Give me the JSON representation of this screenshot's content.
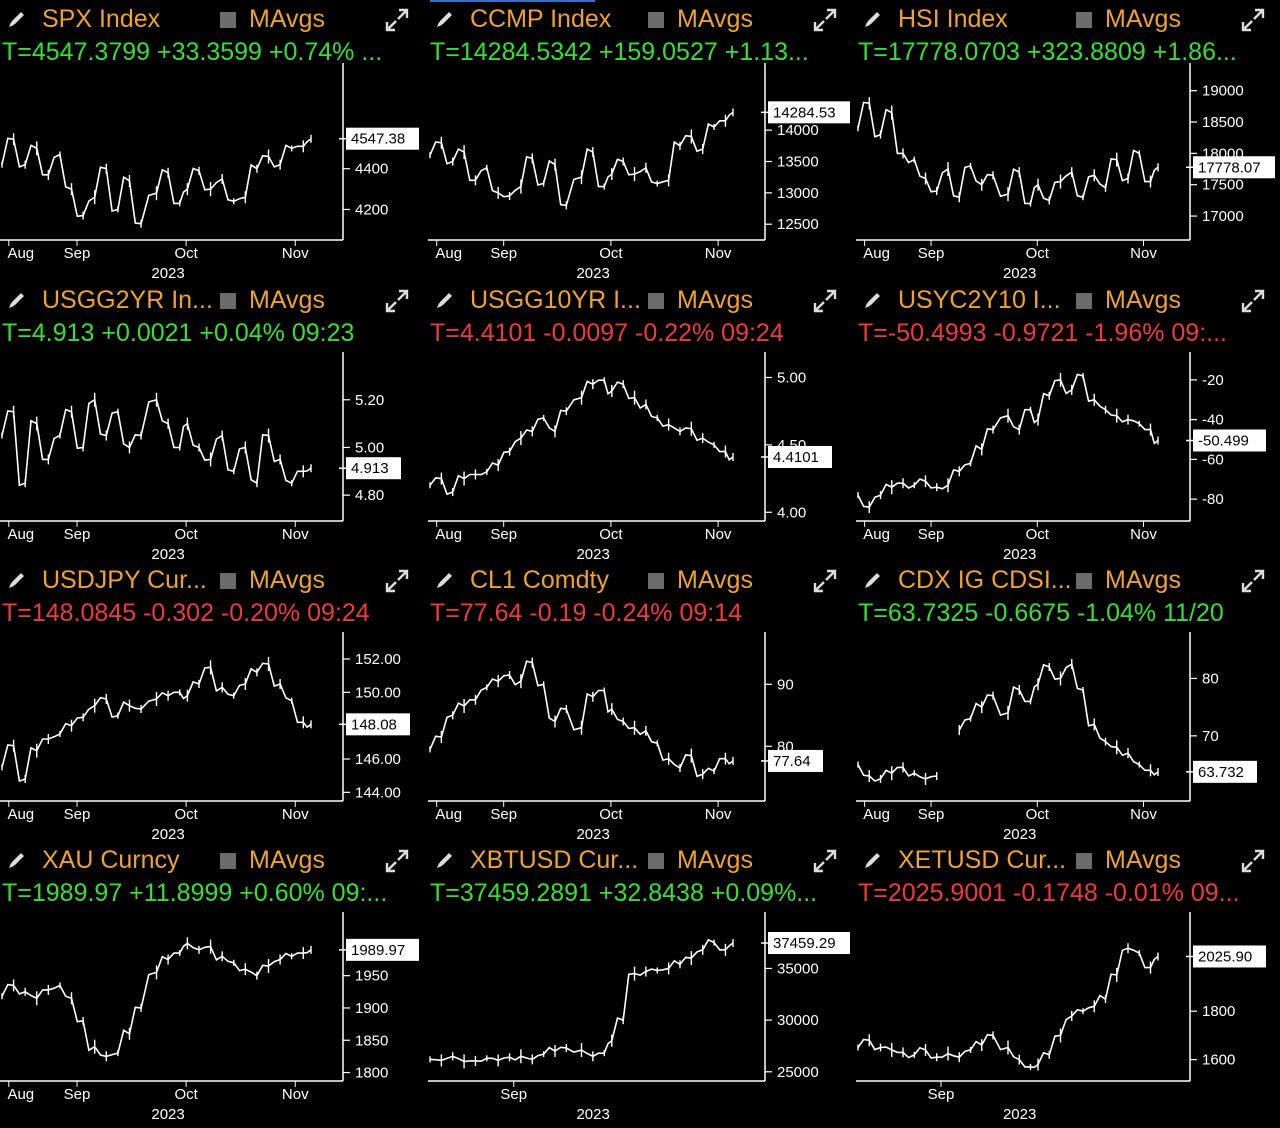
{
  "colors": {
    "background": "#000000",
    "title": "#f0a22e",
    "up": "#35e035",
    "down": "#f03a3a",
    "line": "#ffffff",
    "checkbox": "#6b6b6b"
  },
  "icons": {
    "edit": "pencil-icon",
    "expand": "expand-arrows-icon",
    "toggle": "checkbox-icon"
  },
  "panels": [
    {
      "title": "SPX Index",
      "mavgs": "MAvgs",
      "quote": "T=4547.3799 +33.3599 +0.74% ...",
      "direction": "up",
      "chart_data": {
        "type": "line",
        "ylim": [
          4060,
          4860
        ],
        "yticks": [
          {
            "v": 4400,
            "label": "4400"
          },
          {
            "v": 4200,
            "label": "4200"
          }
        ],
        "last": {
          "v": 4547.38,
          "label": "4547.38"
        },
        "months": [
          "Aug",
          "Sep",
          "Oct",
          "Nov"
        ],
        "year": "2023",
        "x": [
          0,
          3,
          6,
          9,
          12,
          15,
          18,
          21,
          24,
          27,
          30,
          33,
          36,
          40,
          43,
          46,
          48,
          51,
          54,
          57,
          60,
          63,
          66,
          69,
          72,
          75,
          78,
          80
        ],
        "values": [
          4420,
          4545,
          4420,
          4500,
          4370,
          4470,
          4300,
          4170,
          4260,
          4400,
          4200,
          4340,
          4130,
          4280,
          4380,
          4230,
          4300,
          4390,
          4300,
          4350,
          4240,
          4260,
          4400,
          4460,
          4420,
          4500,
          4510,
          4547
        ]
      }
    },
    {
      "title": "CCMP Index",
      "mavgs": "MAvgs",
      "quote": "T=14284.5342 +159.0527 +1.13...",
      "direction": "up",
      "chart_data": {
        "type": "line",
        "ylim": [
          12280,
          14880
        ],
        "yticks": [
          {
            "v": 14000,
            "label": "14000"
          },
          {
            "v": 13500,
            "label": "13500"
          },
          {
            "v": 13000,
            "label": "13000"
          },
          {
            "v": 12500,
            "label": "12500"
          }
        ],
        "last": {
          "v": 14284.53,
          "label": "14284.53"
        },
        "months": [
          "Aug",
          "Sep",
          "Oct",
          "Nov"
        ],
        "year": "2023",
        "x": [
          0,
          3,
          6,
          9,
          12,
          15,
          18,
          21,
          24,
          27,
          30,
          33,
          36,
          40,
          43,
          46,
          48,
          51,
          54,
          57,
          60,
          63,
          66,
          69,
          72,
          75,
          78,
          80
        ],
        "values": [
          13600,
          13800,
          13500,
          13650,
          13200,
          13400,
          13000,
          12950,
          13100,
          13550,
          13150,
          13450,
          12800,
          13250,
          13650,
          13100,
          13300,
          13500,
          13300,
          13400,
          13150,
          13200,
          13750,
          13900,
          13700,
          14050,
          14150,
          14284
        ]
      }
    },
    {
      "title": "HSI Index",
      "mavgs": "MAvgs",
      "quote": "T=17778.0703 +323.8809 +1.86...",
      "direction": "up",
      "chart_data": {
        "type": "line",
        "ylim": [
          16650,
          19250
        ],
        "yticks": [
          {
            "v": 19000,
            "label": "19000"
          },
          {
            "v": 18500,
            "label": "18500"
          },
          {
            "v": 18000,
            "label": "18000"
          },
          {
            "v": 17500,
            "label": "17500"
          },
          {
            "v": 17000,
            "label": "17000"
          }
        ],
        "last": {
          "v": 17778.07,
          "label": "17778.07"
        },
        "months": [
          "Aug",
          "Sep",
          "Oct",
          "Nov"
        ],
        "year": "2023",
        "x": [
          0,
          3,
          6,
          9,
          12,
          15,
          18,
          21,
          24,
          27,
          30,
          33,
          36,
          40,
          43,
          46,
          48,
          51,
          54,
          57,
          60,
          63,
          66,
          69,
          72,
          75,
          78,
          80
        ],
        "values": [
          18400,
          18800,
          18300,
          18650,
          18000,
          17900,
          17600,
          17400,
          17750,
          17300,
          17800,
          17500,
          17650,
          17350,
          17700,
          17200,
          17500,
          17250,
          17550,
          17700,
          17300,
          17650,
          17450,
          17900,
          17600,
          18000,
          17550,
          17778
        ]
      }
    },
    {
      "title": "USGG2YR In...",
      "mavgs": "MAvgs",
      "quote": "T=4.913 +0.0021 +0.04% 09:23",
      "direction": "up",
      "chart_data": {
        "type": "line",
        "ylim": [
          4.7,
          5.35
        ],
        "yticks": [
          {
            "v": 5.2,
            "label": "5.20"
          },
          {
            "v": 5.0,
            "label": "5.00"
          },
          {
            "v": 4.8,
            "label": "4.80"
          }
        ],
        "last": {
          "v": 4.913,
          "label": "4.913"
        },
        "months": [
          "Aug",
          "Sep",
          "Oct",
          "Nov"
        ],
        "year": "2023",
        "x": [
          0,
          3,
          6,
          9,
          12,
          15,
          18,
          21,
          24,
          27,
          30,
          33,
          36,
          40,
          43,
          46,
          48,
          51,
          54,
          57,
          60,
          63,
          66,
          69,
          72,
          75,
          78,
          80
        ],
        "values": [
          5.05,
          5.15,
          4.85,
          5.1,
          4.95,
          5.05,
          5.15,
          5.0,
          5.2,
          5.05,
          5.15,
          5.0,
          5.05,
          5.2,
          5.1,
          5.0,
          5.1,
          5.0,
          4.95,
          5.05,
          4.9,
          5.0,
          4.85,
          5.05,
          4.95,
          4.85,
          4.9,
          4.913
        ]
      }
    },
    {
      "title": "USGG10YR I...",
      "mavgs": "MAvgs",
      "quote": "T=4.4101 -0.0097 -0.22% 09:24",
      "direction": "down",
      "chart_data": {
        "type": "line",
        "ylim": [
          3.95,
          5.1
        ],
        "yticks": [
          {
            "v": 5.0,
            "label": "5.00"
          },
          {
            "v": 4.5,
            "label": "4.50"
          },
          {
            "v": 4.0,
            "label": "4.00"
          }
        ],
        "last": {
          "v": 4.4101,
          "label": "4.4101"
        },
        "months": [
          "Aug",
          "Sep",
          "Oct",
          "Nov"
        ],
        "year": "2023",
        "x": [
          0,
          3,
          6,
          9,
          12,
          15,
          18,
          21,
          24,
          27,
          30,
          33,
          36,
          40,
          43,
          46,
          48,
          51,
          54,
          57,
          60,
          63,
          66,
          69,
          72,
          75,
          78,
          80
        ],
        "values": [
          4.2,
          4.25,
          4.15,
          4.25,
          4.28,
          4.3,
          4.35,
          4.45,
          4.55,
          4.6,
          4.7,
          4.6,
          4.75,
          4.85,
          4.95,
          4.98,
          4.9,
          4.95,
          4.85,
          4.8,
          4.7,
          4.65,
          4.6,
          4.62,
          4.55,
          4.5,
          4.45,
          4.41
        ]
      }
    },
    {
      "title": "USYC2Y10 I...",
      "mavgs": "MAvgs",
      "quote": "T=-50.4993 -0.9721 -1.96% 09:...",
      "direction": "down",
      "chart_data": {
        "type": "line",
        "ylim": [
          -90,
          -12
        ],
        "yticks": [
          {
            "v": -20,
            "label": "-20"
          },
          {
            "v": -40,
            "label": "-40"
          },
          {
            "v": -60,
            "label": "-60"
          },
          {
            "v": -80,
            "label": "-80"
          }
        ],
        "last": {
          "v": -50.499,
          "label": "-50.499"
        },
        "months": [
          "Aug",
          "Sep",
          "Oct",
          "Nov"
        ],
        "year": "2023",
        "x": [
          0,
          3,
          6,
          9,
          12,
          15,
          18,
          21,
          24,
          27,
          30,
          33,
          36,
          40,
          43,
          46,
          48,
          51,
          54,
          57,
          60,
          63,
          66,
          69,
          72,
          75,
          78,
          80
        ],
        "values": [
          -78,
          -84,
          -78,
          -74,
          -72,
          -73,
          -71,
          -74,
          -73,
          -66,
          -62,
          -55,
          -45,
          -38,
          -45,
          -35,
          -40,
          -28,
          -20,
          -25,
          -18,
          -30,
          -35,
          -38,
          -40,
          -42,
          -45,
          -50.5
        ]
      }
    },
    {
      "title": "USDJPY Cur...",
      "mavgs": "MAvgs",
      "quote": "T=148.0845 -0.302 -0.20% 09:24",
      "direction": "down",
      "chart_data": {
        "type": "line",
        "ylim": [
          143.6,
          152.9
        ],
        "yticks": [
          {
            "v": 152,
            "label": "152.00"
          },
          {
            "v": 150,
            "label": "150.00"
          },
          {
            "v": 146,
            "label": "146.00"
          },
          {
            "v": 144,
            "label": "144.00"
          }
        ],
        "last": {
          "v": 148.08,
          "label": "148.08"
        },
        "months": [
          "Aug",
          "Sep",
          "Oct",
          "Nov"
        ],
        "year": "2023",
        "x": [
          0,
          3,
          6,
          9,
          12,
          15,
          18,
          21,
          24,
          27,
          30,
          33,
          36,
          40,
          43,
          46,
          48,
          51,
          54,
          57,
          60,
          63,
          66,
          69,
          72,
          75,
          78,
          80
        ],
        "values": [
          145.5,
          146.8,
          144.8,
          146.5,
          147.2,
          147.5,
          148.0,
          148.5,
          149.2,
          149.6,
          148.6,
          149.2,
          149.0,
          149.6,
          149.8,
          150.0,
          149.8,
          150.5,
          151.5,
          150.3,
          149.8,
          150.5,
          151.2,
          151.7,
          150.5,
          149.5,
          148.2,
          148.08
        ]
      }
    },
    {
      "title": "CL1 Comdty",
      "mavgs": "MAvgs",
      "quote": "T=77.64 -0.19 -0.24% 09:14",
      "direction": "down",
      "chart_data": {
        "type": "line",
        "ylim": [
          71.5,
          96.5
        ],
        "yticks": [
          {
            "v": 90,
            "label": "90"
          },
          {
            "v": 80,
            "label": "80"
          }
        ],
        "last": {
          "v": 77.64,
          "label": "77.64"
        },
        "months": [
          "Aug",
          "Sep",
          "Oct",
          "Nov"
        ],
        "year": "2023",
        "x": [
          0,
          3,
          6,
          9,
          12,
          15,
          18,
          21,
          24,
          27,
          30,
          33,
          36,
          40,
          43,
          46,
          48,
          51,
          54,
          57,
          60,
          63,
          66,
          69,
          72,
          75,
          78,
          80
        ],
        "values": [
          79.5,
          81.5,
          85,
          86.5,
          87.5,
          89.5,
          90.5,
          91.5,
          90.5,
          93.5,
          90,
          84,
          86,
          83,
          88,
          89,
          86,
          84,
          83,
          82.5,
          80.5,
          78,
          76.5,
          78.5,
          75.5,
          76,
          78,
          77.64
        ]
      }
    },
    {
      "title": "CDX IG CDSI...",
      "mavgs": "MAvgs",
      "quote": "T=63.7325 -0.6675 -1.04% 11/20",
      "direction": "up",
      "chart_data": {
        "type": "line",
        "ylim": [
          59,
          86
        ],
        "yticks": [
          {
            "v": 80,
            "label": "80"
          },
          {
            "v": 70,
            "label": "70"
          }
        ],
        "last": {
          "v": 63.732,
          "label": "63.732"
        },
        "months": [
          "Aug",
          "Sep",
          "Oct",
          "Nov"
        ],
        "year": "2023",
        "x": [
          0,
          3,
          6,
          9,
          12,
          15,
          18,
          21,
          24,
          27,
          30,
          33,
          36,
          40,
          43,
          46,
          48,
          51,
          54,
          57,
          60,
          63,
          66,
          69,
          72,
          75,
          78,
          80
        ],
        "values": [
          65,
          63,
          62.5,
          63.5,
          64.5,
          63.5,
          62.5,
          63,
          null,
          71,
          73,
          75,
          77,
          74,
          78,
          76,
          79,
          82,
          80,
          82.5,
          78,
          72,
          69,
          68,
          67,
          65,
          64,
          63.7
        ]
      }
    },
    {
      "title": "XAU Curncy",
      "mavgs": "MAvgs",
      "quote": "T=1989.97 +11.8999 +0.60% 09:...",
      "direction": "up",
      "chart_data": {
        "type": "line",
        "ylim": [
          1790,
          2030
        ],
        "yticks": [
          {
            "v": 1950,
            "label": "1950"
          },
          {
            "v": 1900,
            "label": "1900"
          },
          {
            "v": 1850,
            "label": "1850"
          },
          {
            "v": 1800,
            "label": "1800"
          }
        ],
        "last": {
          "v": 1989.97,
          "label": "1989.97"
        },
        "months": [
          "Aug",
          "Sep",
          "Oct",
          "Nov"
        ],
        "year": "2023",
        "x": [
          0,
          3,
          6,
          9,
          12,
          15,
          18,
          21,
          24,
          27,
          30,
          33,
          36,
          40,
          43,
          46,
          48,
          51,
          54,
          57,
          60,
          63,
          66,
          69,
          72,
          75,
          78,
          80
        ],
        "values": [
          1918,
          1935,
          1925,
          1915,
          1928,
          1935,
          1915,
          1880,
          1840,
          1825,
          1830,
          1860,
          1900,
          1955,
          1975,
          1985,
          2000,
          1990,
          1995,
          1980,
          1970,
          1960,
          1950,
          1965,
          1975,
          1980,
          1985,
          1990
        ]
      }
    },
    {
      "title": "XBTUSD Cur...",
      "mavgs": "MAvgs",
      "quote": "T=37459.2891 +32.8438 +0.09%...",
      "direction": "up",
      "chart_data": {
        "type": "line",
        "ylim": [
          24300,
          39300
        ],
        "yticks": [
          {
            "v": 35000,
            "label": "35000"
          },
          {
            "v": 30000,
            "label": "30000"
          },
          {
            "v": 25000,
            "label": "25000"
          }
        ],
        "last": {
          "v": 37459.29,
          "label": "37459.29"
        },
        "months": [
          "Sep"
        ],
        "year": "2023",
        "x": [
          0,
          3,
          6,
          9,
          12,
          15,
          18,
          21,
          24,
          27,
          30,
          33,
          36,
          40,
          43,
          46,
          48,
          51,
          54,
          57,
          60,
          63,
          66,
          69,
          72,
          75,
          78,
          80
        ],
        "values": [
          26200,
          26100,
          26500,
          26000,
          26050,
          26300,
          26100,
          26400,
          26500,
          26200,
          26700,
          27000,
          27300,
          27100,
          26500,
          26800,
          28000,
          30000,
          34500,
          34700,
          34800,
          35000,
          35400,
          36000,
          36800,
          37500,
          36800,
          37459
        ]
      }
    },
    {
      "title": "XETUSD Cur...",
      "mavgs": "MAvgs",
      "quote": "T=2025.9001 -0.1748 -0.01% 09...",
      "direction": "down",
      "chart_data": {
        "type": "line",
        "ylim": [
          1520,
          2160
        ],
        "yticks": [
          {
            "v": 1800,
            "label": "1800"
          },
          {
            "v": 1600,
            "label": "1600"
          }
        ],
        "last": {
          "v": 2025.9,
          "label": "2025.90"
        },
        "months": [
          "Sep"
        ],
        "year": "2023",
        "x": [
          0,
          3,
          6,
          9,
          12,
          15,
          18,
          21,
          24,
          27,
          30,
          33,
          36,
          40,
          43,
          46,
          48,
          51,
          54,
          57,
          60,
          63,
          66,
          69,
          72,
          75,
          78,
          80
        ],
        "values": [
          1650,
          1680,
          1650,
          1640,
          1630,
          1620,
          1640,
          1610,
          1625,
          1610,
          1640,
          1660,
          1700,
          1650,
          1600,
          1570,
          1580,
          1620,
          1700,
          1780,
          1800,
          1820,
          1850,
          1950,
          2060,
          2040,
          1980,
          2025.9
        ]
      }
    }
  ]
}
